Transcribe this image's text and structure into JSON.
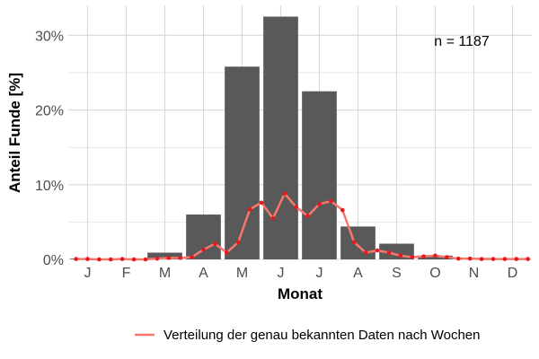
{
  "chart_data": {
    "type": "bar",
    "title": "",
    "xlabel": "Monat",
    "ylabel": "Anteil Funde [%]",
    "categories": [
      "J",
      "F",
      "M",
      "A",
      "M",
      "J",
      "J",
      "A",
      "S",
      "O",
      "N",
      "D"
    ],
    "yticks": [
      0,
      10,
      20,
      30
    ],
    "ytick_labels": [
      "0%",
      "10%",
      "20%",
      "30%"
    ],
    "ylim": [
      0,
      34
    ],
    "grid": true,
    "annotation": "n = 1187",
    "colors": {
      "bar": "#595959",
      "line": "#f8766d",
      "point": "#e41a1c",
      "grid": "#d9d9d9"
    },
    "series": [
      {
        "kind": "bar",
        "values": [
          0.1,
          0.05,
          0.9,
          6.0,
          25.8,
          32.5,
          22.5,
          4.4,
          2.1,
          0.5,
          0.2,
          0.05
        ]
      },
      {
        "kind": "line",
        "name": "Verteilung der genau bekannten Daten nach Wochen",
        "x": [
          0.7,
          1.0,
          1.3,
          1.6,
          1.9,
          2.2,
          2.5,
          2.8,
          3.1,
          3.4,
          3.7,
          4.0,
          4.3,
          4.6,
          4.9,
          5.2,
          5.5,
          5.8,
          6.1,
          6.4,
          6.7,
          7.0,
          7.3,
          7.6,
          7.9,
          8.2,
          8.5,
          8.8,
          9.1,
          9.4,
          9.7,
          10.0,
          10.3,
          10.6,
          10.9,
          11.2,
          11.5,
          11.8,
          12.1,
          12.4
        ],
        "y": [
          0.05,
          0.05,
          0.0,
          0.0,
          0.05,
          0.0,
          0.0,
          0.1,
          0.2,
          0.2,
          0.3,
          1.3,
          2.1,
          0.9,
          2.3,
          6.7,
          7.6,
          5.5,
          8.8,
          7.0,
          5.8,
          7.4,
          7.8,
          6.6,
          2.3,
          0.9,
          1.2,
          0.9,
          0.5,
          0.3,
          0.4,
          0.5,
          0.3,
          0.1,
          0.1,
          0.05,
          0.05,
          0.05,
          0.05,
          0.05
        ]
      }
    ],
    "legend": {
      "position": "bottom"
    }
  }
}
